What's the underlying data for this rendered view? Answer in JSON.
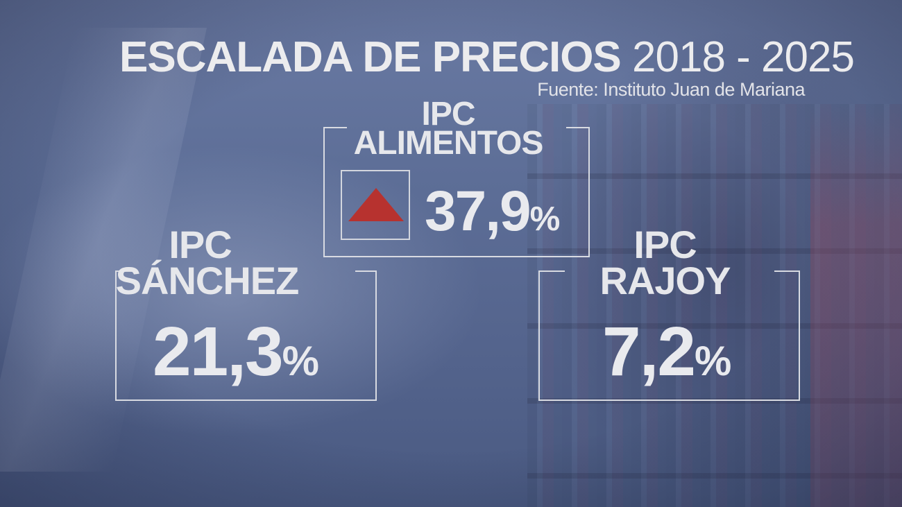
{
  "title": {
    "bold": "ESCALADA DE PRECIOS",
    "light": "2018 - 2025"
  },
  "source": "Fuente: Instituto Juan de Mariana",
  "panels": {
    "alimentos": {
      "line1": "IPC",
      "line2": "ALIMENTOS",
      "value": "37,9",
      "unit": "%",
      "indicator": "up-arrow-icon",
      "indicator_color": "#b7322f"
    },
    "sanchez": {
      "line1": "IPC",
      "line2": "SÁNCHEZ",
      "value": "21,3",
      "unit": "%"
    },
    "rajoy": {
      "line1": "IPC",
      "line2": "RAJOY",
      "value": "7,2",
      "unit": "%"
    }
  }
}
